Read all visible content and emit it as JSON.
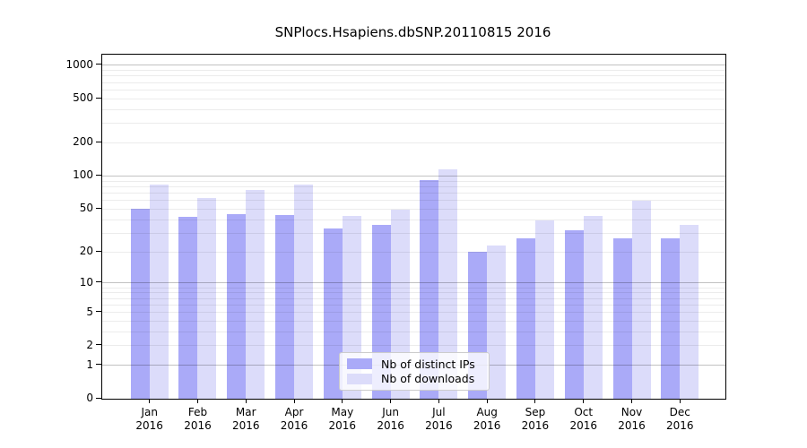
{
  "chart_data": {
    "type": "bar",
    "title": "SNPlocs.Hsapiens.dbSNP.20110815 2016",
    "categories": [
      "Jan",
      "Feb",
      "Mar",
      "Apr",
      "May",
      "Jun",
      "Jul",
      "Aug",
      "Sep",
      "Oct",
      "Nov",
      "Dec"
    ],
    "category_year": "2016",
    "x_tick_labels": [
      "Jan 2016",
      "Feb 2016",
      "Mar 2016",
      "Apr 2016",
      "May 2016",
      "Jun 2016",
      "Jul 2016",
      "Aug 2016",
      "Sep 2016",
      "Oct 2016",
      "Nov 2016",
      "Dec 2016"
    ],
    "series": [
      {
        "name": "Nb of distinct IPs",
        "color": "#aaaaf8",
        "values": [
          50,
          42,
          45,
          44,
          33,
          36,
          92,
          20,
          27,
          32,
          27,
          27
        ]
      },
      {
        "name": "Nb of downloads",
        "color": "#dcdcfa",
        "values": [
          83,
          63,
          74,
          83,
          43,
          49,
          115,
          23,
          39,
          43,
          60,
          36
        ]
      }
    ],
    "yscale": "log1p",
    "ylim": [
      0,
      1000
    ],
    "yticks": [
      0,
      1,
      2,
      5,
      10,
      20,
      50,
      100,
      200,
      500,
      1000
    ],
    "grid": true,
    "grid_major_color": "#c3c3c3",
    "grid_minor_color": "#ececec",
    "legend_position": "lower center",
    "xlabel": "",
    "ylabel": ""
  }
}
